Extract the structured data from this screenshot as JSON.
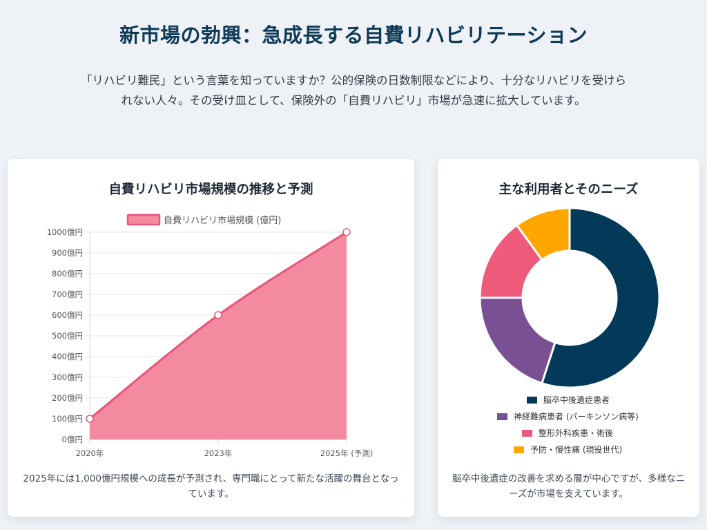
{
  "page": {
    "title": "新市場の勃興：急成長する自費リハビリテーション",
    "intro": "「リハビリ難民」という言葉を知っていますか？公的保険の日数制限などにより、十分なリハビリを受けられない人々。その受け皿として、保険外の「自費リハビリ」市場が急速に拡大しています。"
  },
  "colors": {
    "title": "#0f3a57",
    "area_fill": "#f48aa0",
    "area_line": "#e8557a",
    "donut": [
      "#033a5a",
      "#7a5095",
      "#ee5a7a",
      "#ffa600"
    ]
  },
  "left_card": {
    "title": "自費リハビリ市場規模の推移と予測",
    "caption": "2025年には1,000億円規模への成長が予測され、専門職にとって新たな活躍の舞台となっています。"
  },
  "right_card": {
    "title": "主な利用者とそのニーズ",
    "caption": "脳卒中後遺症の改善を求める層が中心ですが、多様なニーズが市場を支えています。"
  },
  "chart_data": [
    {
      "type": "area",
      "categories": [
        "2020年",
        "2023年",
        "2025年 (予測)"
      ],
      "series": [
        {
          "name": "自費リハビリ市場規模 (億円)",
          "values": [
            100,
            600,
            1000
          ]
        }
      ],
      "ylim": [
        0,
        1000
      ],
      "yticks": [
        {
          "v": 1000,
          "label": "1000億円"
        },
        {
          "v": 900,
          "label": "900億円"
        },
        {
          "v": 800,
          "label": "800億円"
        },
        {
          "v": 700,
          "label": "700億円"
        },
        {
          "v": 600,
          "label": "600億円"
        },
        {
          "v": 500,
          "label": "500億円"
        },
        {
          "v": 400,
          "label": "400億円"
        },
        {
          "v": 300,
          "label": "300億円"
        },
        {
          "v": 200,
          "label": "200億円"
        },
        {
          "v": 100,
          "label": "100億円"
        },
        {
          "v": 0,
          "label": "0億円"
        }
      ],
      "grid": true,
      "legend": "top"
    },
    {
      "type": "pie",
      "donut": true,
      "categories": [
        "脳卒中後遺症患者",
        "神経難病患者 (パーキンソン病等)",
        "整形外科疾患・術後",
        "予防・慢性痛 (現役世代)"
      ],
      "values": [
        55,
        20,
        15,
        10
      ],
      "legend": "bottom"
    }
  ]
}
